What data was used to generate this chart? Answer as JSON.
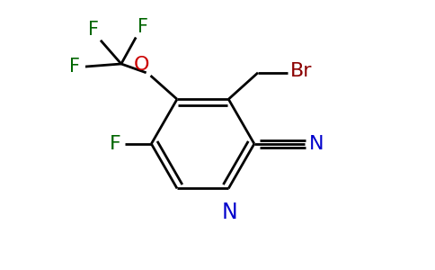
{
  "background_color": "#ffffff",
  "bond_color": "#000000",
  "bond_lw": 2.0,
  "atom_colors": {
    "N": "#0000cc",
    "O": "#cc0000",
    "F": "#006600",
    "Br": "#8b0000",
    "C": "#000000"
  },
  "font_size": 16,
  "font_size_br": 16
}
